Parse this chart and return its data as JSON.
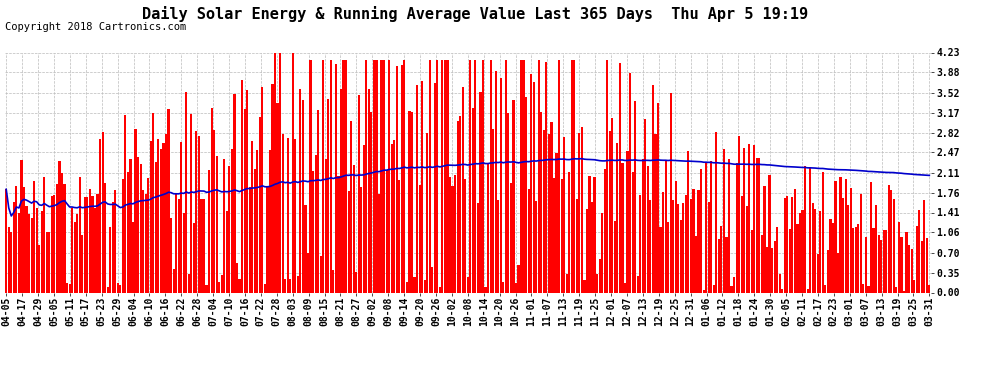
{
  "title": "Daily Solar Energy & Running Average Value Last 365 Days  Thu Apr 5 19:19",
  "copyright": "Copyright 2018 Cartronics.com",
  "ylabel_right_ticks": [
    0.0,
    0.35,
    0.7,
    1.06,
    1.41,
    1.76,
    2.11,
    2.47,
    2.82,
    3.17,
    3.52,
    3.88,
    4.23
  ],
  "bar_color": "#ff0000",
  "average_line_color": "#0000cc",
  "background_color": "#ffffff",
  "grid_color": "#bbbbbb",
  "avg_value": 2.11,
  "num_bars": 365,
  "legend_avg_bg": "#0000cc",
  "legend_daily_bg": "#cc0000",
  "legend_text_color": "#ffffff",
  "title_fontsize": 11,
  "copyright_fontsize": 7.5,
  "tick_fontsize": 7,
  "x_tick_labels": [
    "04-05",
    "04-17",
    "04-29",
    "05-05",
    "05-11",
    "05-17",
    "05-23",
    "05-29",
    "06-04",
    "06-10",
    "06-16",
    "06-22",
    "06-28",
    "07-04",
    "07-10",
    "07-16",
    "07-22",
    "07-28",
    "08-03",
    "08-09",
    "08-15",
    "08-21",
    "08-27",
    "09-02",
    "09-08",
    "09-14",
    "09-20",
    "09-26",
    "10-02",
    "10-08",
    "10-14",
    "10-20",
    "10-26",
    "11-01",
    "11-07",
    "11-13",
    "11-19",
    "11-25",
    "12-01",
    "12-07",
    "12-13",
    "12-19",
    "12-25",
    "12-31",
    "01-06",
    "01-12",
    "01-18",
    "01-24",
    "01-30",
    "02-05",
    "02-11",
    "02-17",
    "02-23",
    "03-01",
    "03-07",
    "03-13",
    "03-19",
    "03-25",
    "03-31"
  ]
}
